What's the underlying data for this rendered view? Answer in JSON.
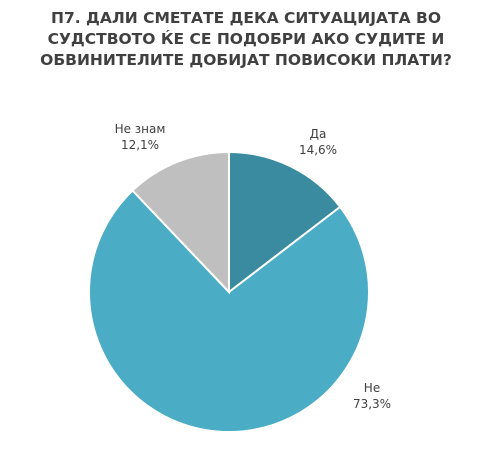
{
  "chart_data": {
    "type": "pie",
    "title": "П7. ДАЛИ СМЕТАТЕ ДЕКА СИТУАЦИЈАТА ВО СУДСТВОТО ЌЕ СЕ ПОДОБРИ АКО СУДИТЕ И ОБВИНИТЕЛИТЕ ДОБИЈАТ ПОВИСОКИ ПЛАТИ?",
    "categories": [
      "Да",
      "Не",
      "Не знам"
    ],
    "values": [
      14.6,
      73.3,
      12.1
    ],
    "value_labels": [
      "14,6%",
      "73,3%",
      "12,1%"
    ],
    "colors": [
      "#3a8ba0",
      "#4bacc6",
      "#bfbfbf"
    ]
  }
}
